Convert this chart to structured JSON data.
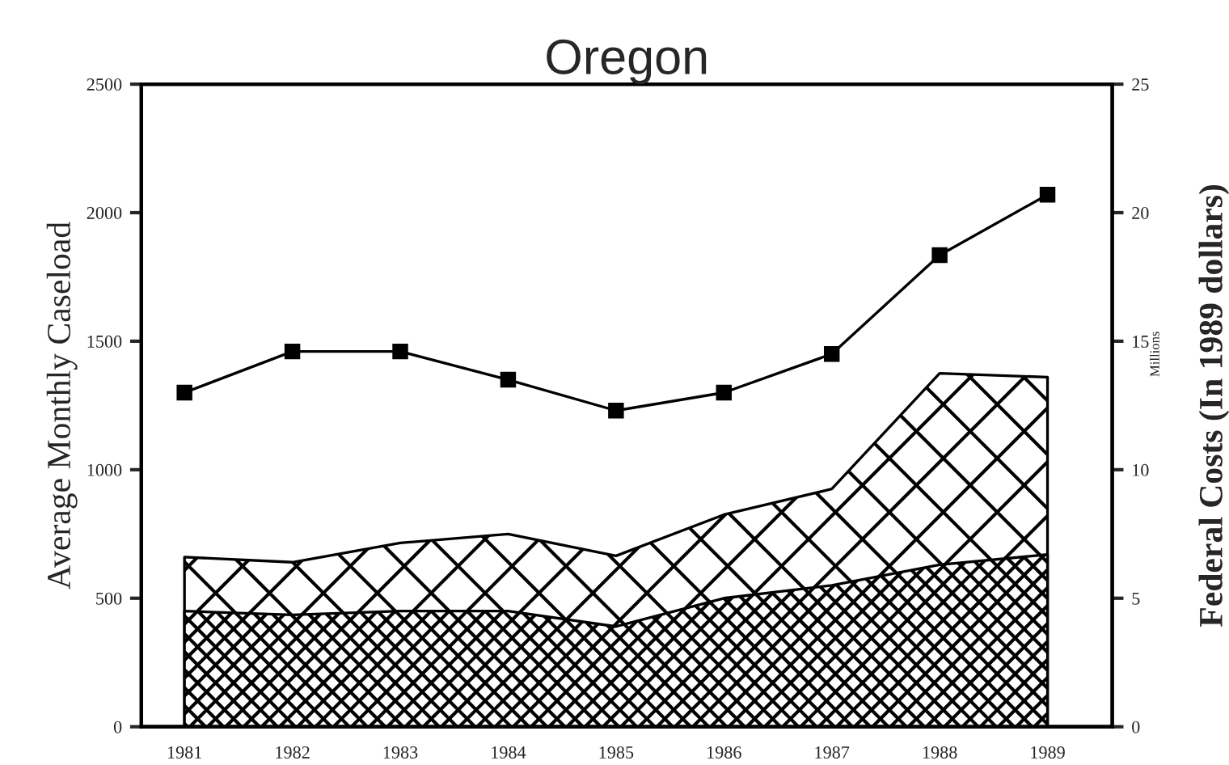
{
  "chart_data": {
    "type": "line",
    "title": "Oregon",
    "ylabel": "Average Monthly Caseload",
    "y2label": "Federal Costs (In 1989 dollars)",
    "annotations": [
      "Millions"
    ],
    "categories": [
      "1981",
      "1982",
      "1983",
      "1984",
      "1985",
      "1986",
      "1987",
      "1988",
      "1989"
    ],
    "ylim": [
      0,
      2500
    ],
    "yticks": [
      0,
      500,
      1000,
      1500,
      2000,
      2500
    ],
    "y2lim": [
      0,
      25
    ],
    "y2ticks": [
      0,
      5,
      10,
      15,
      20,
      25
    ],
    "grid": false,
    "legend": false,
    "series": [
      {
        "type": "area",
        "axis": "y2",
        "color": "#000000",
        "values": [
          6.6,
          6.4,
          7.15,
          7.5,
          6.65,
          8.25,
          9.25,
          13.75,
          13.6
        ]
      },
      {
        "type": "area",
        "axis": "y2",
        "color": "#000000",
        "values": [
          4.5,
          4.35,
          4.5,
          4.5,
          3.9,
          5.0,
          5.5,
          6.3,
          6.7
        ]
      },
      {
        "axis": "y",
        "marker": "square",
        "color": "#000000",
        "values": [
          1300,
          1460,
          1460,
          1350,
          1230,
          1300,
          1450,
          1835,
          2070
        ]
      }
    ]
  }
}
